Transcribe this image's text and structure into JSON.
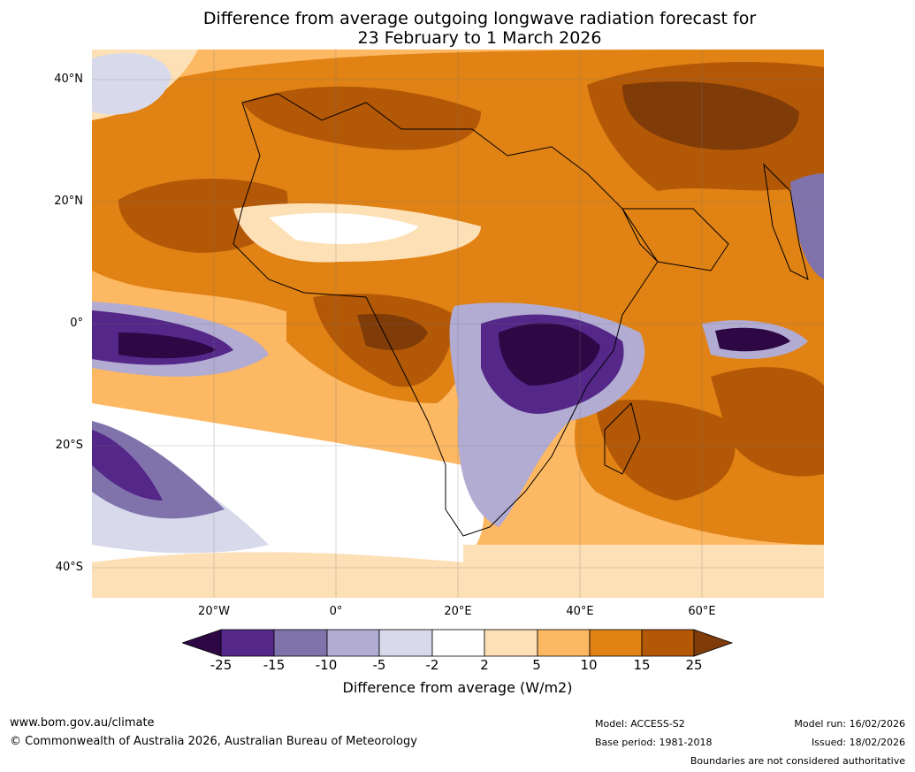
{
  "title": {
    "line1": "Difference from average outgoing longwave radiation forecast for",
    "line2": "23 February to 1 March 2026"
  },
  "map": {
    "lat_labels": [
      "40°N",
      "20°N",
      "0°",
      "20°S",
      "40°S"
    ],
    "lon_labels": [
      "20°W",
      "0°",
      "20°E",
      "40°E",
      "60°E"
    ],
    "extent": {
      "lon_min": -40,
      "lon_max": 80,
      "lat_min": -45,
      "lat_max": 45
    }
  },
  "colorbar": {
    "ticks": [
      "-25",
      "-15",
      "-10",
      "-5",
      "-2",
      "2",
      "5",
      "10",
      "15",
      "25"
    ],
    "colors": [
      "#2d0845",
      "#542789",
      "#8073ac",
      "#b2abd2",
      "#d8daeb",
      "#ffffff",
      "#fee0b6",
      "#fdb863",
      "#e08214",
      "#b35806",
      "#7f3b08"
    ],
    "label": "Difference from average (W/m2)"
  },
  "footer": {
    "url": "www.bom.gov.au/climate",
    "copyright": "© Commonwealth of Australia 2026, Australian Bureau of Meteorology",
    "model": "Model: ACCESS-S2",
    "base_period": "Base period: 1981-2018",
    "model_run": "Model run: 16/02/2026",
    "issued": "Issued: 18/02/2026",
    "disclaimer": "Boundaries are not considered authoritative"
  }
}
